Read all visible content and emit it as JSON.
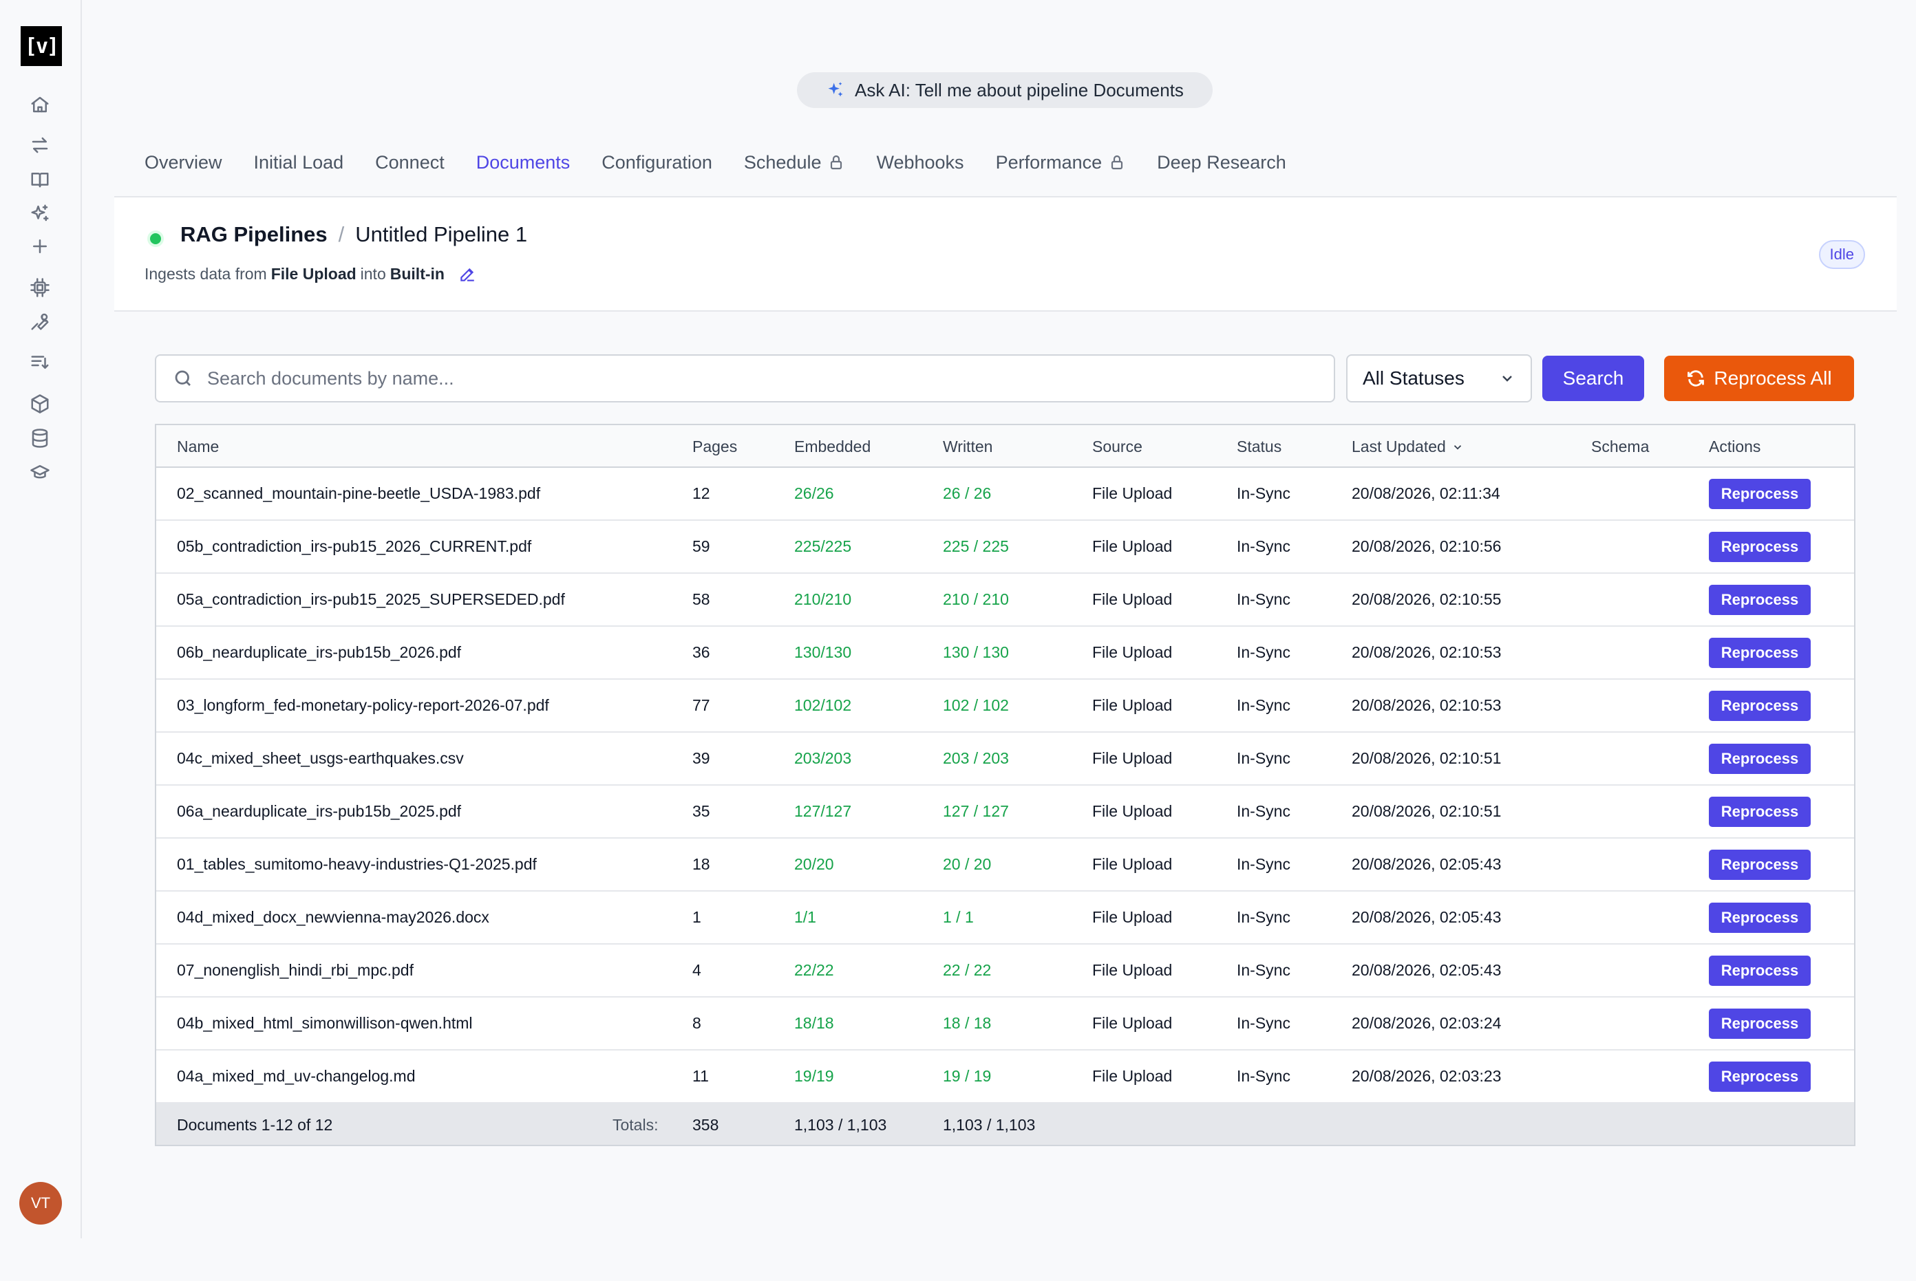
{
  "app": {
    "logo_text": "[v]",
    "avatar_initials": "VT"
  },
  "sidebar": {
    "icons": [
      "home-icon",
      "arrows-swap-icon",
      "book-icon",
      "sparkles-icon",
      "plus-icon",
      "chip-icon",
      "wrench-icon",
      "list-sort-icon",
      "cube-icon",
      "database-icon",
      "graduation-cap-icon"
    ]
  },
  "ask_ai": {
    "label": "Ask AI: Tell me about pipeline Documents"
  },
  "tabs": [
    {
      "label": "Overview",
      "active": false,
      "locked": false
    },
    {
      "label": "Initial Load",
      "active": false,
      "locked": false
    },
    {
      "label": "Connect",
      "active": false,
      "locked": false
    },
    {
      "label": "Documents",
      "active": true,
      "locked": false
    },
    {
      "label": "Configuration",
      "active": false,
      "locked": false
    },
    {
      "label": "Schedule",
      "active": false,
      "locked": true
    },
    {
      "label": "Webhooks",
      "active": false,
      "locked": false
    },
    {
      "label": "Performance",
      "active": false,
      "locked": true
    },
    {
      "label": "Deep Research",
      "active": false,
      "locked": false
    }
  ],
  "pipeline": {
    "breadcrumb_root": "RAG Pipelines",
    "separator": "/",
    "name": "Untitled Pipeline 1",
    "ingest_prefix": "Ingests data from",
    "source": "File Upload",
    "ingest_middle": "into",
    "destination": "Built-in",
    "status_badge": "Idle"
  },
  "toolbar": {
    "search_placeholder": "Search documents by name...",
    "search_value": "",
    "status_filter": "All Statuses",
    "search_label": "Search",
    "reprocess_all_label": "Reprocess All"
  },
  "table": {
    "headers": {
      "name": "Name",
      "pages": "Pages",
      "embedded": "Embedded",
      "written": "Written",
      "source": "Source",
      "status": "Status",
      "last_updated": "Last Updated",
      "schema": "Schema",
      "actions": "Actions"
    },
    "action_label": "Reprocess",
    "rows": [
      {
        "name": "02_scanned_mountain-pine-beetle_USDA-1983.pdf",
        "pages": "12",
        "embedded": "26/26",
        "written": "26 / 26",
        "source": "File Upload",
        "status": "In-Sync",
        "updated": "20/08/2026, 02:11:34",
        "schema": ""
      },
      {
        "name": "05b_contradiction_irs-pub15_2026_CURRENT.pdf",
        "pages": "59",
        "embedded": "225/225",
        "written": "225 / 225",
        "source": "File Upload",
        "status": "In-Sync",
        "updated": "20/08/2026, 02:10:56",
        "schema": ""
      },
      {
        "name": "05a_contradiction_irs-pub15_2025_SUPERSEDED.pdf",
        "pages": "58",
        "embedded": "210/210",
        "written": "210 / 210",
        "source": "File Upload",
        "status": "In-Sync",
        "updated": "20/08/2026, 02:10:55",
        "schema": ""
      },
      {
        "name": "06b_nearduplicate_irs-pub15b_2026.pdf",
        "pages": "36",
        "embedded": "130/130",
        "written": "130 / 130",
        "source": "File Upload",
        "status": "In-Sync",
        "updated": "20/08/2026, 02:10:53",
        "schema": ""
      },
      {
        "name": "03_longform_fed-monetary-policy-report-2026-07.pdf",
        "pages": "77",
        "embedded": "102/102",
        "written": "102 / 102",
        "source": "File Upload",
        "status": "In-Sync",
        "updated": "20/08/2026, 02:10:53",
        "schema": ""
      },
      {
        "name": "04c_mixed_sheet_usgs-earthquakes.csv",
        "pages": "39",
        "embedded": "203/203",
        "written": "203 / 203",
        "source": "File Upload",
        "status": "In-Sync",
        "updated": "20/08/2026, 02:10:51",
        "schema": ""
      },
      {
        "name": "06a_nearduplicate_irs-pub15b_2025.pdf",
        "pages": "35",
        "embedded": "127/127",
        "written": "127 / 127",
        "source": "File Upload",
        "status": "In-Sync",
        "updated": "20/08/2026, 02:10:51",
        "schema": ""
      },
      {
        "name": "01_tables_sumitomo-heavy-industries-Q1-2025.pdf",
        "pages": "18",
        "embedded": "20/20",
        "written": "20 / 20",
        "source": "File Upload",
        "status": "In-Sync",
        "updated": "20/08/2026, 02:05:43",
        "schema": ""
      },
      {
        "name": "04d_mixed_docx_newvienna-may2026.docx",
        "pages": "1",
        "embedded": "1/1",
        "written": "1 / 1",
        "source": "File Upload",
        "status": "In-Sync",
        "updated": "20/08/2026, 02:05:43",
        "schema": ""
      },
      {
        "name": "07_nonenglish_hindi_rbi_mpc.pdf",
        "pages": "4",
        "embedded": "22/22",
        "written": "22 / 22",
        "source": "File Upload",
        "status": "In-Sync",
        "updated": "20/08/2026, 02:05:43",
        "schema": ""
      },
      {
        "name": "04b_mixed_html_simonwillison-qwen.html",
        "pages": "8",
        "embedded": "18/18",
        "written": "18 / 18",
        "source": "File Upload",
        "status": "In-Sync",
        "updated": "20/08/2026, 02:03:24",
        "schema": ""
      },
      {
        "name": "04a_mixed_md_uv-changelog.md",
        "pages": "11",
        "embedded": "19/19",
        "written": "19 / 19",
        "source": "File Upload",
        "status": "In-Sync",
        "updated": "20/08/2026, 02:03:23",
        "schema": ""
      }
    ],
    "footer": {
      "range": "Documents 1-12 of 12",
      "totals_label": "Totals:",
      "pages_total": "358",
      "embedded_total": "1,103 / 1,103",
      "written_total": "1,103 / 1,103"
    }
  },
  "colors": {
    "accent": "#4f46e5",
    "orange": "#ea580c",
    "green": "#16a34a",
    "status_dot": "#22c55e"
  }
}
